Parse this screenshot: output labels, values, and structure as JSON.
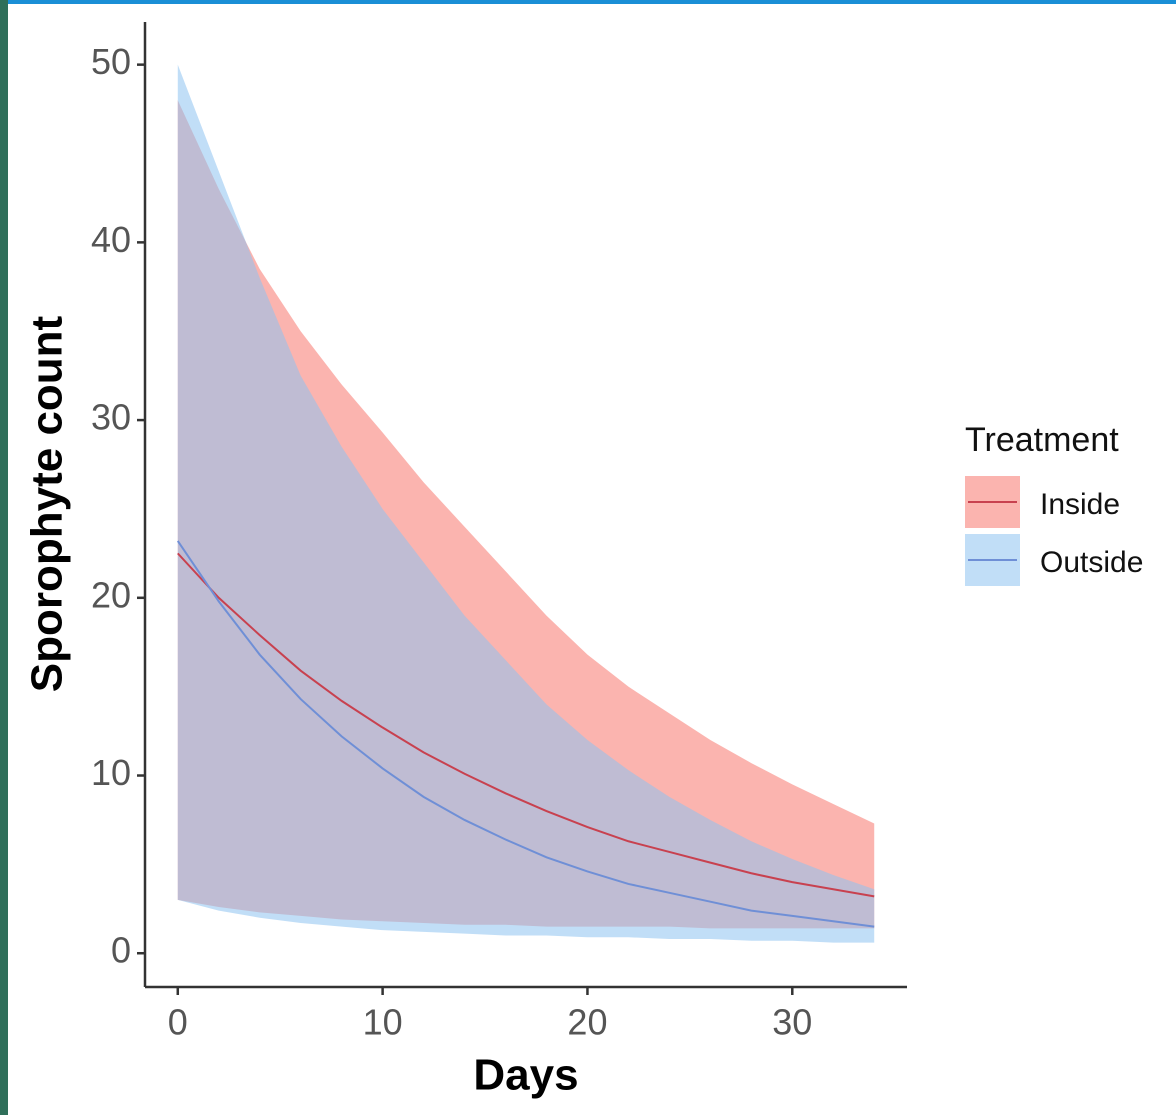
{
  "chart_data": {
    "type": "line",
    "x_label": "Days",
    "y_label": "Sporophyte count",
    "legend_title": "Treatment",
    "legend_position": "right",
    "x": [
      0,
      2,
      4,
      6,
      8,
      10,
      12,
      14,
      16,
      18,
      20,
      22,
      24,
      26,
      28,
      30,
      32,
      34
    ],
    "series": [
      {
        "name": "Inside",
        "color": "#c8414f",
        "fill": "#f8766d",
        "values": [
          22.5,
          20.0,
          17.9,
          15.9,
          14.2,
          12.7,
          11.3,
          10.1,
          9.0,
          8.0,
          7.1,
          6.3,
          5.7,
          5.1,
          4.5,
          4.0,
          3.6,
          3.2
        ],
        "lower": [
          3.0,
          2.6,
          2.3,
          2.1,
          1.9,
          1.8,
          1.7,
          1.6,
          1.6,
          1.5,
          1.5,
          1.5,
          1.5,
          1.4,
          1.4,
          1.4,
          1.4,
          1.4
        ],
        "upper": [
          48.0,
          43.0,
          38.5,
          35.0,
          32.0,
          29.3,
          26.5,
          24.0,
          21.5,
          19.0,
          16.8,
          15.0,
          13.5,
          12.0,
          10.7,
          9.5,
          8.4,
          7.3
        ]
      },
      {
        "name": "Outside",
        "color": "#6f8fd6",
        "fill": "#8ec3f0",
        "values": [
          23.2,
          19.8,
          16.8,
          14.3,
          12.2,
          10.4,
          8.8,
          7.5,
          6.4,
          5.4,
          4.6,
          3.9,
          3.4,
          2.9,
          2.4,
          2.1,
          1.8,
          1.5
        ],
        "lower": [
          3.0,
          2.4,
          2.0,
          1.7,
          1.5,
          1.3,
          1.2,
          1.1,
          1.0,
          1.0,
          0.9,
          0.9,
          0.8,
          0.8,
          0.7,
          0.7,
          0.6,
          0.6
        ],
        "upper": [
          50.0,
          44.0,
          38.0,
          32.5,
          28.5,
          25.0,
          22.0,
          19.0,
          16.5,
          14.0,
          12.0,
          10.3,
          8.8,
          7.5,
          6.3,
          5.3,
          4.4,
          3.6
        ]
      }
    ],
    "xlim": [
      -1.6,
      35.6
    ],
    "ylim": [
      -1.9,
      52.4
    ],
    "xticks": [
      0,
      10,
      20,
      30
    ],
    "yticks": [
      0,
      10,
      20,
      30,
      40,
      50
    ]
  }
}
